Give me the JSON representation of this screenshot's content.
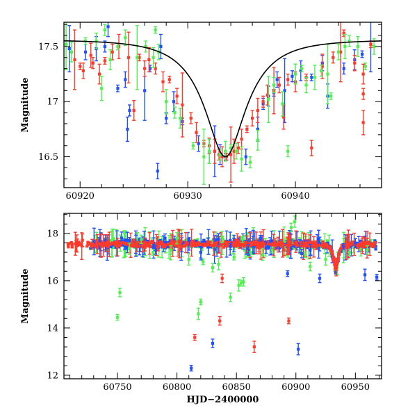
{
  "chart_data": [
    {
      "type": "scatter",
      "title": "",
      "xlabel": "",
      "ylabel": "Magnitude",
      "xlim": [
        60918.5,
        60948
      ],
      "ylim": [
        17.72,
        16.22
      ],
      "x_ticks": [
        60920,
        60930,
        60940
      ],
      "x_tick_labels": [
        "60920",
        "60930",
        "60940"
      ],
      "y_ticks": [
        16.5,
        17,
        17.5
      ],
      "y_tick_labels": [
        "16.5",
        "17",
        "17.5"
      ],
      "fit_curve": {
        "type": "microlensing",
        "t0": 60933.5,
        "peak_mag": 16.5,
        "baseline_mag": 17.56,
        "color": "#000000"
      },
      "series": [
        {
          "name": "blue",
          "color": "#2050ff",
          "points": [
            [
              60919,
              17.48
            ],
            [
              60920.5,
              17.45
            ],
            [
              60921.5,
              17.48
            ],
            [
              60922.3,
              17.5
            ],
            [
              60922.6,
              17.68
            ],
            [
              60923.5,
              17.12
            ],
            [
              60924.2,
              17.2
            ],
            [
              60924.4,
              16.75
            ],
            [
              60924.6,
              16.92
            ],
            [
              60926,
              17.1
            ],
            [
              60926.5,
              17.3
            ],
            [
              60927.2,
              16.37
            ],
            [
              60927.5,
              17.5
            ],
            [
              60928,
              16.85
            ],
            [
              60928.7,
              17.0
            ],
            [
              60929.5,
              16.82
            ],
            [
              60931,
              16.62
            ],
            [
              60932,
              16.55
            ],
            [
              60932.5,
              16.55
            ],
            [
              60933,
              16.52
            ],
            [
              60933.5,
              16.5
            ],
            [
              60935.4,
              16.5
            ],
            [
              60936.5,
              16.75
            ],
            [
              60937,
              16.98
            ],
            [
              60937.5,
              17.05
            ],
            [
              60938,
              17.08
            ],
            [
              60938.3,
              17.2
            ],
            [
              60939,
              17.1
            ],
            [
              60939.7,
              17.23
            ],
            [
              60940.5,
              17.28
            ],
            [
              60941.5,
              17.22
            ],
            [
              60942.5,
              17.35
            ],
            [
              60943,
              17.05
            ],
            [
              60944.5,
              17.3
            ],
            [
              60945.5,
              17.38
            ],
            [
              60946.2,
              17.43
            ],
            [
              60947,
              17.52
            ]
          ]
        },
        {
          "name": "red",
          "color": "#ff3a2a",
          "points": [
            [
              60919.5,
              17.38
            ],
            [
              60920,
              17.32
            ],
            [
              60920.3,
              17.28
            ],
            [
              60921,
              17.42
            ],
            [
              60921.2,
              17.35
            ],
            [
              60921.8,
              17.25
            ],
            [
              60922.3,
              17.37
            ],
            [
              60923,
              17.45
            ],
            [
              60923.6,
              17.5
            ],
            [
              60924.5,
              17.4
            ],
            [
              60925,
              16.92
            ],
            [
              60925.5,
              17.4
            ],
            [
              60926,
              17.3
            ],
            [
              60926.4,
              17.38
            ],
            [
              60927,
              17.3
            ],
            [
              60927.7,
              17.18
            ],
            [
              60928.3,
              17.2
            ],
            [
              60929,
              17.05
            ],
            [
              60929.5,
              16.97
            ],
            [
              60930.3,
              16.85
            ],
            [
              60930.8,
              16.72
            ],
            [
              60931.5,
              16.62
            ],
            [
              60932,
              16.6
            ],
            [
              60932.5,
              16.55
            ],
            [
              60932.9,
              16.52
            ],
            [
              60933.2,
              16.5
            ],
            [
              60933.6,
              16.5
            ],
            [
              60934,
              16.52
            ],
            [
              60934.3,
              16.55
            ],
            [
              60934.7,
              16.58
            ],
            [
              60935,
              16.66
            ],
            [
              60935.5,
              16.75
            ],
            [
              60936,
              16.85
            ],
            [
              60936.5,
              16.92
            ],
            [
              60937,
              17.0
            ],
            [
              60937.4,
              17.06
            ],
            [
              60938,
              17.1
            ],
            [
              60938.5,
              17.15
            ],
            [
              60938.9,
              16.86
            ],
            [
              60939.3,
              17.2
            ],
            [
              60940,
              17.18
            ],
            [
              60941,
              17.22
            ],
            [
              60941.5,
              16.58
            ],
            [
              60942.5,
              17.32
            ],
            [
              60943.5,
              17.4
            ],
            [
              60944.2,
              17.45
            ],
            [
              60944.5,
              17.62
            ],
            [
              60945.5,
              17.35
            ],
            [
              60946.3,
              16.81
            ],
            [
              60946.3,
              17.07
            ],
            [
              60946.3,
              17.25
            ],
            [
              60947,
              17.52
            ]
          ]
        },
        {
          "name": "green",
          "color": "#50f050",
          "points": [
            [
              60918.7,
              17.52
            ],
            [
              60919.2,
              17.45
            ],
            [
              60920.5,
              17.55
            ],
            [
              60921.5,
              17.55
            ],
            [
              60922,
              17.12
            ],
            [
              60922.3,
              17.65
            ],
            [
              60922.8,
              17.38
            ],
            [
              60923.5,
              17.5
            ],
            [
              60924.2,
              17.58
            ],
            [
              60925.3,
              17.4
            ],
            [
              60926.1,
              17.5
            ],
            [
              60926.8,
              17.4
            ],
            [
              60927,
              17.65
            ],
            [
              60927.3,
              17.45
            ],
            [
              60928,
              17.0
            ],
            [
              60928.8,
              16.9
            ],
            [
              60929.3,
              16.85
            ],
            [
              60930.5,
              16.6
            ],
            [
              60931.5,
              16.5
            ],
            [
              60932,
              16.55
            ],
            [
              60933,
              16.52
            ],
            [
              60933.5,
              16.55
            ],
            [
              60934,
              16.58
            ],
            [
              60934.5,
              16.55
            ],
            [
              60935,
              16.48
            ],
            [
              60935.8,
              16.45
            ],
            [
              60936.5,
              16.65
            ],
            [
              60937.5,
              17.02
            ],
            [
              60938,
              17.15
            ],
            [
              60938.8,
              16.98
            ],
            [
              60939.3,
              16.55
            ],
            [
              60940,
              17.25
            ],
            [
              60940.6,
              17.3
            ],
            [
              60941,
              17.15
            ],
            [
              60941.8,
              17.22
            ],
            [
              60942.4,
              17.28
            ],
            [
              60943,
              17.25
            ],
            [
              60943.3,
              17.05
            ],
            [
              60944,
              17.45
            ],
            [
              60944.6,
              17.5
            ],
            [
              60945,
              17.55
            ],
            [
              60945.8,
              17.5
            ],
            [
              60946.5,
              17.32
            ],
            [
              60947.3,
              17.5
            ]
          ]
        }
      ]
    },
    {
      "type": "scatter",
      "title": "",
      "xlabel": "HJD−2400000",
      "ylabel": "Magnitude",
      "xlim": [
        60705,
        60972
      ],
      "ylim": [
        18.85,
        11.85
      ],
      "x_ticks": [
        60750,
        60800,
        60850,
        60900,
        60950
      ],
      "x_tick_labels": [
        "60750",
        "60800",
        "60850",
        "60900",
        "60950"
      ],
      "y_ticks": [
        12,
        14,
        16,
        18
      ],
      "y_tick_labels": [
        "12",
        "14",
        "16",
        "18"
      ],
      "baseline_mag": 17.55,
      "event_peak": {
        "t0": 60933.5,
        "peak_mag": 16.5
      },
      "series": [
        {
          "name": "blue",
          "color": "#2050ff",
          "points": [
            [
              60812,
              12.3
            ],
            [
              60830,
              13.35
            ],
            [
              60902,
              13.1
            ],
            [
              60893,
              16.3
            ],
            [
              60920,
              16.1
            ],
            [
              60958,
              16.25
            ],
            [
              60968,
              16.15
            ],
            [
              60782,
              17.3
            ],
            [
              60820,
              17.2
            ],
            [
              60845,
              17.45
            ],
            [
              60860,
              17.35
            ],
            [
              60875,
              17.4
            ],
            [
              60760,
              17.7
            ],
            [
              60790,
              17.8
            ],
            [
              60835,
              17.75
            ],
            [
              60870,
              17.8
            ],
            [
              60905,
              17.15
            ],
            [
              60912,
              17.3
            ],
            [
              60940,
              17.45
            ],
            [
              60950,
              17.6
            ]
          ]
        },
        {
          "name": "red",
          "color": "#ff3a2a",
          "points": [
            [
              60815,
              13.6
            ],
            [
              60836,
              14.3
            ],
            [
              60865,
              13.2
            ],
            [
              60894,
              14.3
            ],
            [
              60838,
              16.1
            ],
            [
              60890,
              17.3
            ],
            [
              60895,
              17.8
            ],
            [
              60917,
              17.5
            ],
            [
              60960,
              17.55
            ]
          ]
        },
        {
          "name": "green",
          "color": "#50f050",
          "points": [
            [
              60750,
              14.45
            ],
            [
              60752,
              15.5
            ],
            [
              60818,
              14.6
            ],
            [
              60820,
              15.1
            ],
            [
              60845,
              15.3
            ],
            [
              60852,
              15.8
            ],
            [
              60854,
              15.9
            ],
            [
              60856,
              15.95
            ],
            [
              60760,
              17.35
            ],
            [
              60780,
              17.2
            ],
            [
              60795,
              17.3
            ],
            [
              60810,
              16.9
            ],
            [
              60822,
              16.8
            ],
            [
              60830,
              16.55
            ],
            [
              60835,
              16.7
            ],
            [
              60848,
              17.0
            ],
            [
              60862,
              17.2
            ],
            [
              60872,
              17.1
            ],
            [
              60880,
              17.3
            ],
            [
              60896,
              18.25
            ],
            [
              60899,
              18.5
            ],
            [
              60908,
              17.1
            ],
            [
              60912,
              16.6
            ],
            [
              60925,
              16.9
            ],
            [
              60945,
              17.2
            ],
            [
              60960,
              17.3
            ],
            [
              60838,
              17.85
            ],
            [
              60855,
              17.75
            ],
            [
              60770,
              17.75
            ],
            [
              60800,
              17.8
            ]
          ]
        }
      ]
    }
  ]
}
